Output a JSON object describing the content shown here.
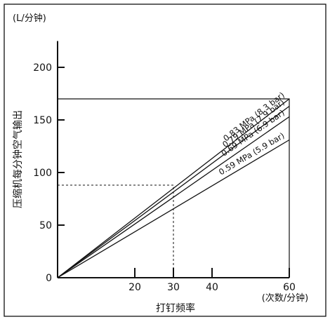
{
  "chart_data": {
    "type": "line",
    "title": "",
    "y_unit": "(L/分钟)",
    "x_unit": "(次数/分钟)",
    "xlabel": "打钉频率",
    "ylabel": "压缩机每分钟空气输出",
    "xlim": [
      0,
      60
    ],
    "ylim": [
      0,
      225
    ],
    "x_ticks": [
      20,
      30,
      40,
      60
    ],
    "y_ticks": [
      0,
      50,
      100,
      150,
      200
    ],
    "x_tick_labels": [
      "20",
      "30",
      "40",
      "60"
    ],
    "y_tick_labels": [
      "0",
      "50",
      "100",
      "150",
      "200"
    ],
    "grid": false,
    "series": [
      {
        "name": "0.83 MPa (8.3 bar)",
        "x": [
          0,
          60
        ],
        "y": [
          0,
          170
        ]
      },
      {
        "name": "0.79 MPa (7.9 bar)",
        "x": [
          0,
          60
        ],
        "y": [
          0,
          163
        ]
      },
      {
        "name": "0.69 MPa (6.9 bar)",
        "x": [
          0,
          60
        ],
        "y": [
          0,
          153
        ]
      },
      {
        "name": "0.59 MPa (5.9 bar)",
        "x": [
          0,
          60
        ],
        "y": [
          0,
          131
        ]
      }
    ],
    "reference_box": {
      "x": 60,
      "y": 170
    },
    "reference_dashed": {
      "x": 30,
      "y": 88
    }
  }
}
